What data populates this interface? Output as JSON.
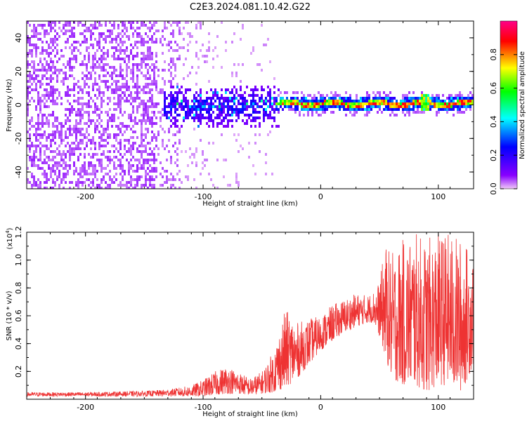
{
  "title": "C2E3.2024.081.10.42.G22",
  "chart_data": [
    {
      "type": "heatmap",
      "xlabel": "Height of straight line (km)",
      "ylabel": "Frequency (Hz)",
      "xlim": [
        -250,
        130
      ],
      "ylim": [
        -50,
        50
      ],
      "xticks": [
        -200,
        -100,
        0,
        100
      ],
      "yticks": [
        -40,
        -20,
        0,
        20,
        40
      ],
      "colorbar": {
        "label": "Normalized spectral amplitude",
        "range": [
          0,
          1
        ],
        "ticks": [
          "0.0",
          "0.2",
          "0.4",
          "0.6",
          "0.8"
        ],
        "colors": [
          "#f0c8f8",
          "#8800ff",
          "#0000ff",
          "#00ffff",
          "#00ff00",
          "#ffff00",
          "#ff0000",
          "#ff0088"
        ]
      },
      "description_of_regions": [
        {
          "x_range": [
            -250,
            -130
          ],
          "frequency_spread": [
            -50,
            50
          ],
          "amplitude": "low"
        },
        {
          "x_range": [
            -130,
            -40
          ],
          "frequency_spread": [
            -15,
            15
          ],
          "amplitude": "medium"
        },
        {
          "x_range": [
            -40,
            130
          ],
          "frequency_spread": [
            -3,
            4
          ],
          "amplitude": "high"
        }
      ]
    },
    {
      "type": "line",
      "xlabel": "Height of straight line (km)",
      "ylabel": "SNR (10 * v/v)",
      "yscale_label": "(x10",
      "yscale_exponent": "4",
      "xlim": [
        -250,
        130
      ],
      "ylim": [
        0,
        1.2
      ],
      "xticks": [
        -200,
        -100,
        0,
        100
      ],
      "yticks": [
        "0.2",
        "0.4",
        "0.6",
        "0.8",
        "1.0",
        "1.2"
      ],
      "color": "#ee3333",
      "envelope": {
        "x": [
          -250,
          -200,
          -150,
          -130,
          -110,
          -100,
          -90,
          -80,
          -70,
          -60,
          -50,
          -40,
          -30,
          -20,
          -10,
          0,
          10,
          20,
          30,
          40,
          45,
          50,
          55,
          60,
          70,
          80,
          90,
          100,
          110,
          120,
          130
        ],
        "low": [
          0.02,
          0.02,
          0.02,
          0.02,
          0.02,
          0.02,
          0.03,
          0.04,
          0.04,
          0.03,
          0.04,
          0.05,
          0.08,
          0.15,
          0.25,
          0.35,
          0.42,
          0.48,
          0.52,
          0.55,
          0.55,
          0.45,
          0.3,
          0.15,
          0.1,
          0.1,
          0.05,
          0.1,
          0.1,
          0.05,
          0.25
        ],
        "high": [
          0.05,
          0.05,
          0.06,
          0.07,
          0.1,
          0.14,
          0.2,
          0.24,
          0.2,
          0.15,
          0.2,
          0.35,
          0.65,
          0.55,
          0.58,
          0.6,
          0.68,
          0.72,
          0.76,
          0.75,
          0.78,
          0.85,
          1.12,
          1.05,
          1.15,
          1.2,
          1.15,
          1.2,
          1.2,
          1.15,
          1.05
        ]
      }
    }
  ]
}
